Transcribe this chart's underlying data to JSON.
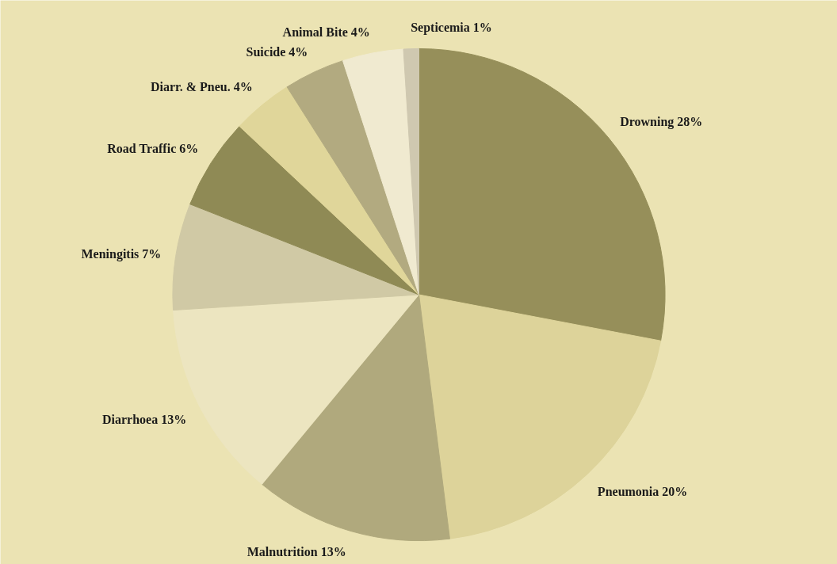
{
  "chart_data": {
    "type": "pie",
    "categories": [
      "Drowning",
      "Pneumonia",
      "Malnutrition",
      "Diarrhoea",
      "Meningitis",
      "Road Traffic",
      "Diarr. & Pneu.",
      "Suicide",
      "Animal Bite",
      "Septicemia"
    ],
    "values": [
      28,
      20,
      13,
      13,
      7,
      6,
      4,
      4,
      4,
      1
    ],
    "value_labels": [
      "28%",
      "20%",
      "13%",
      "13%",
      "7%",
      "6%",
      "4%",
      "4%",
      "4%",
      "1%"
    ],
    "colors": [
      "#968f5a",
      "#ddd39a",
      "#b0a97d",
      "#ece5c0",
      "#d0c9a5",
      "#8f8a55",
      "#e0d69a",
      "#b2aa80",
      "#f0ead0",
      "#cfc8b0"
    ]
  }
}
